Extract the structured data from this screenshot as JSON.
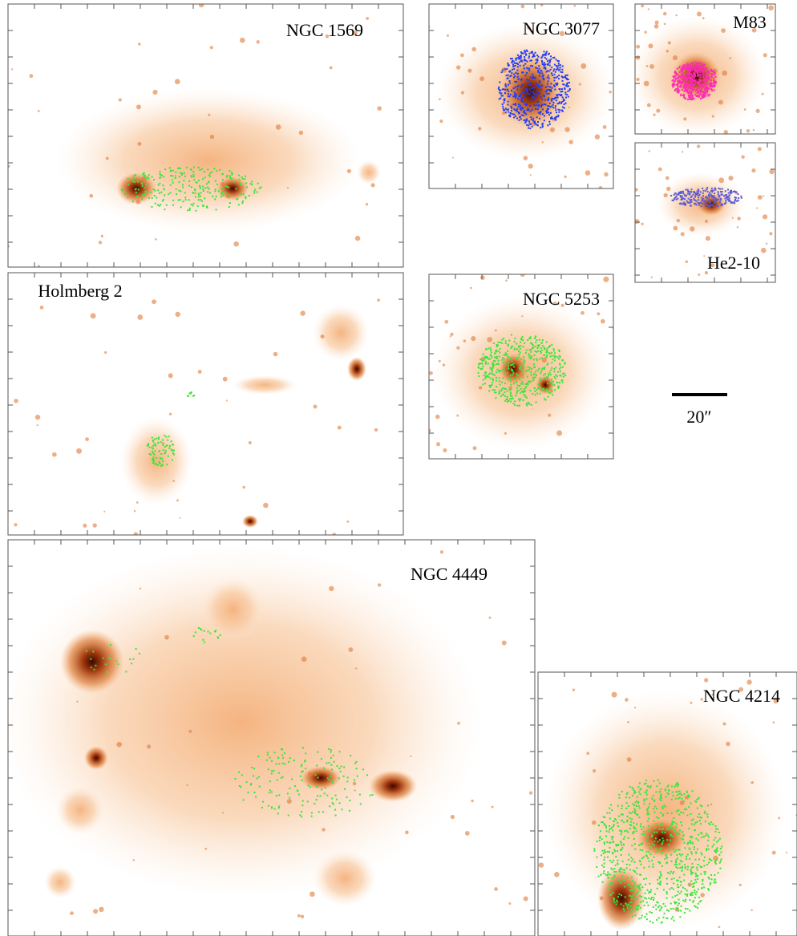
{
  "panels": [
    {
      "label": "NGC 1569"
    },
    {
      "label": "NGC 3077"
    },
    {
      "label": "M83"
    },
    {
      "label": "He2-10"
    },
    {
      "label": "Holmberg 2"
    },
    {
      "label": "NGC 5253"
    },
    {
      "label": "NGC 4449"
    },
    {
      "label": "NGC 4214"
    }
  ],
  "scale_bar": {
    "label": "20″"
  }
}
